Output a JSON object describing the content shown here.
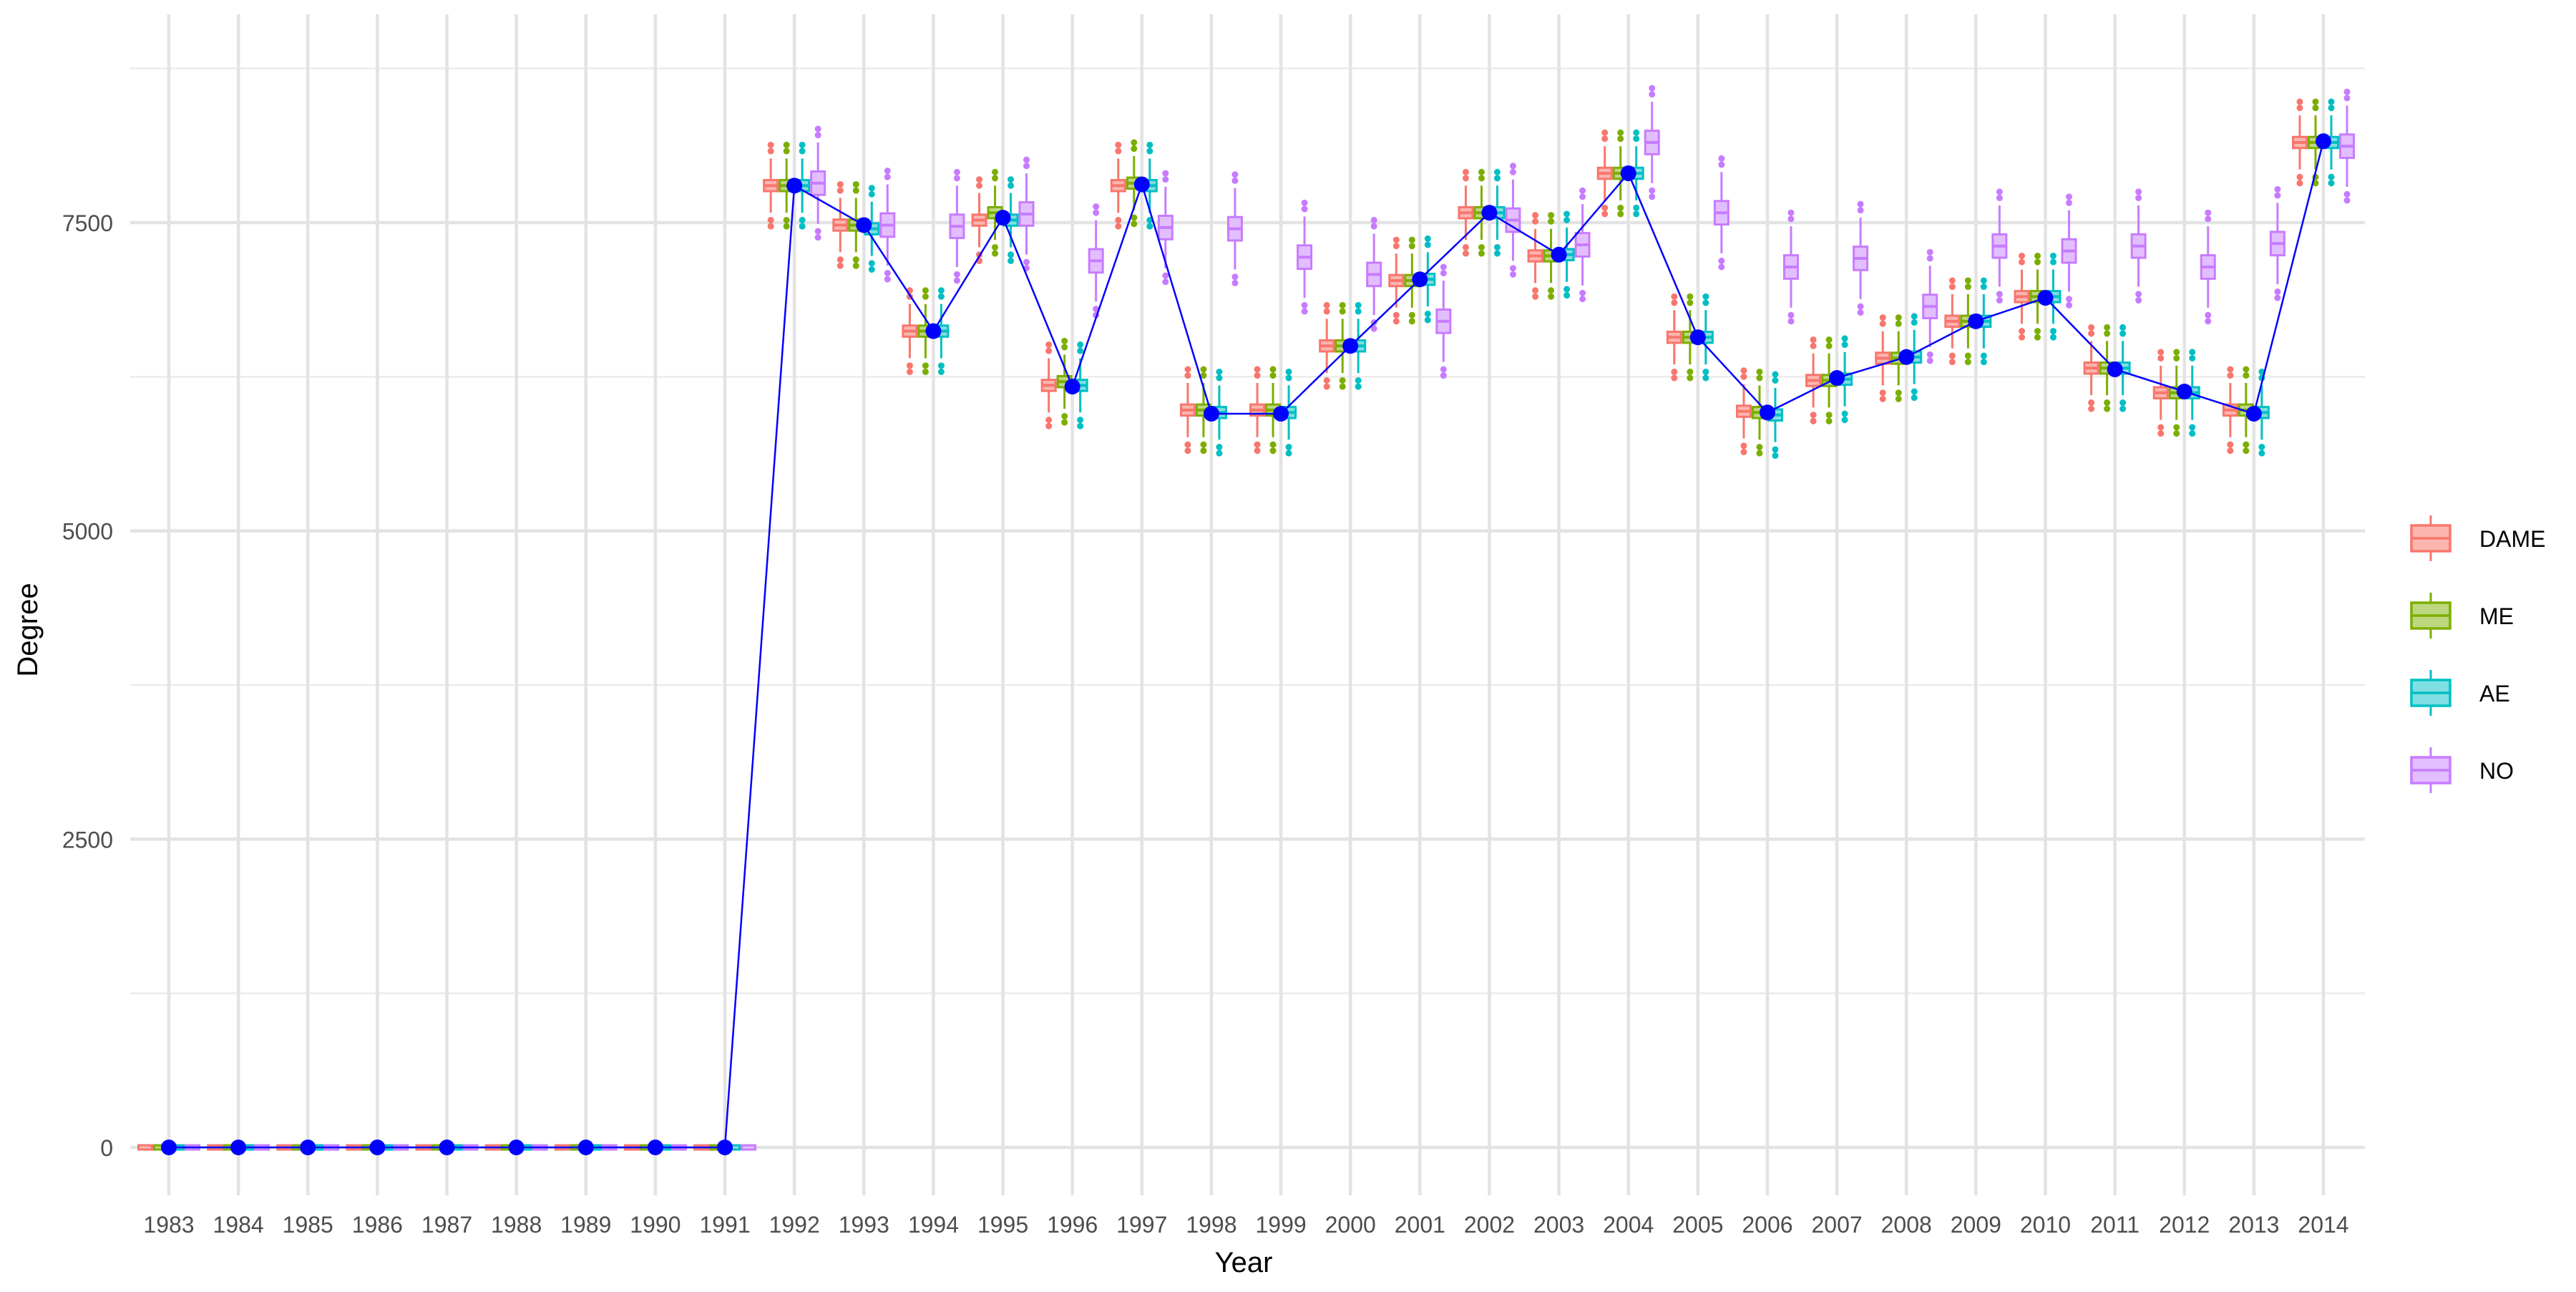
{
  "chart_data": {
    "type": "box",
    "title": "",
    "xlabel": "Year",
    "ylabel": "Degree",
    "categories": [
      "1983",
      "1984",
      "1985",
      "1986",
      "1987",
      "1988",
      "1989",
      "1990",
      "1991",
      "1992",
      "1993",
      "1994",
      "1995",
      "1996",
      "1997",
      "1998",
      "1999",
      "2000",
      "2001",
      "2002",
      "2003",
      "2004",
      "2005",
      "2006",
      "2007",
      "2008",
      "2009",
      "2010",
      "2011",
      "2012",
      "2013",
      "2014"
    ],
    "ylim": [
      -400,
      8800
    ],
    "y_ticks": [
      0,
      2500,
      5000,
      7500
    ],
    "y_minor_ticks": [
      1250,
      3750,
      6250,
      8750
    ],
    "grid": true,
    "legend_position": "right",
    "legend_items": [
      "DAME",
      "ME",
      "AE",
      "NO"
    ],
    "series": [
      {
        "name": "DAME",
        "color": "#F8766D",
        "fill": "#FBB5AF",
        "medians": [
          0,
          0,
          0,
          0,
          0,
          0,
          0,
          0,
          0,
          7800,
          7480,
          6620,
          7520,
          6180,
          7800,
          5980,
          5980,
          6500,
          7030,
          7580,
          7230,
          7900,
          6570,
          5970,
          6220,
          6400,
          6700,
          6900,
          6320,
          6120,
          5980,
          8150
        ]
      },
      {
        "name": "ME",
        "color": "#7CAE00",
        "fill": "#BDD780",
        "medians": [
          0,
          0,
          0,
          0,
          0,
          0,
          0,
          0,
          0,
          7800,
          7480,
          6620,
          7580,
          6210,
          7820,
          5980,
          5980,
          6500,
          7030,
          7580,
          7230,
          7900,
          6570,
          5960,
          6220,
          6400,
          6700,
          6900,
          6320,
          6120,
          5980,
          8150
        ]
      },
      {
        "name": "AE",
        "color": "#00BFC4",
        "fill": "#80DFE2",
        "medians": [
          0,
          0,
          0,
          0,
          0,
          0,
          0,
          0,
          0,
          7800,
          7450,
          6620,
          7520,
          6180,
          7800,
          5960,
          5960,
          6500,
          7040,
          7580,
          7240,
          7900,
          6570,
          5940,
          6230,
          6410,
          6700,
          6900,
          6320,
          6120,
          5960,
          8150
        ]
      },
      {
        "name": "NO",
        "color": "#C77CFF",
        "fill": "#E3BEFF",
        "medians": [
          0,
          0,
          0,
          0,
          0,
          0,
          0,
          0,
          0,
          7820,
          7480,
          7470,
          7570,
          7190,
          7460,
          7450,
          7220,
          7080,
          6700,
          7520,
          7320,
          8150,
          7580,
          7140,
          7210,
          6820,
          7310,
          7270,
          7310,
          7140,
          7330,
          8120
        ]
      }
    ],
    "line_series": {
      "name": "mean",
      "color": "#0000FF",
      "values": [
        0,
        0,
        0,
        0,
        0,
        0,
        0,
        0,
        0,
        7800,
        7480,
        6620,
        7540,
        6170,
        7810,
        5950,
        5950,
        6500,
        7040,
        7580,
        7240,
        7900,
        6570,
        5960,
        6240,
        6410,
        6700,
        6890,
        6310,
        6130,
        5950,
        8160
      ]
    }
  }
}
